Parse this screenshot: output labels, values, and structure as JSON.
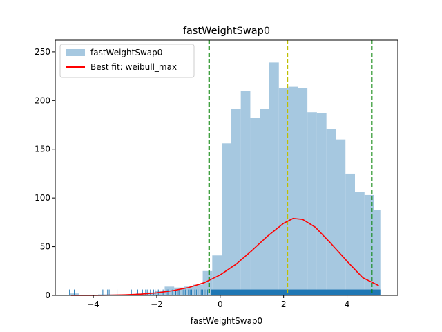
{
  "chart_data": {
    "type": "bar",
    "title": "fastWeightSwap0",
    "xlabel": "fastWeightSwap0",
    "ylabel": "",
    "xlim": [
      -5.2,
      5.6
    ],
    "ylim": [
      0,
      262
    ],
    "grid": false,
    "legend_position": "top-left",
    "xticks": [
      -4,
      -2,
      0,
      2,
      4
    ],
    "xtick_labels": [
      "−4",
      "−2",
      "0",
      "2",
      "4"
    ],
    "yticks": [
      0,
      50,
      100,
      150,
      200,
      250
    ],
    "ytick_labels": [
      "0",
      "50",
      "100",
      "150",
      "200",
      "250"
    ],
    "histogram": {
      "name": "fastWeightSwap0",
      "color": "#a6c8e0",
      "bins": [
        {
          "x0": -4.75,
          "x1": -4.45,
          "value": 2
        },
        {
          "x0": -4.45,
          "x1": -4.15,
          "value": 0
        },
        {
          "x0": -4.15,
          "x1": -3.85,
          "value": 0
        },
        {
          "x0": -3.85,
          "x1": -3.55,
          "value": 1
        },
        {
          "x0": -3.55,
          "x1": -3.25,
          "value": 1
        },
        {
          "x0": -3.25,
          "x1": -2.95,
          "value": 1
        },
        {
          "x0": -2.95,
          "x1": -2.65,
          "value": 1
        },
        {
          "x0": -2.65,
          "x1": -2.35,
          "value": 2
        },
        {
          "x0": -2.35,
          "x1": -2.05,
          "value": 3
        },
        {
          "x0": -2.05,
          "x1": -1.75,
          "value": 5
        },
        {
          "x0": -1.75,
          "x1": -1.45,
          "value": 9
        },
        {
          "x0": -1.45,
          "x1": -1.15,
          "value": 8
        },
        {
          "x0": -1.15,
          "x1": -0.85,
          "value": 9
        },
        {
          "x0": -0.85,
          "x1": -0.55,
          "value": 11
        },
        {
          "x0": -0.55,
          "x1": -0.25,
          "value": 25
        },
        {
          "x0": -0.25,
          "x1": 0.05,
          "value": 41
        },
        {
          "x0": 0.05,
          "x1": 0.35,
          "value": 156
        },
        {
          "x0": 0.35,
          "x1": 0.65,
          "value": 191
        },
        {
          "x0": 0.65,
          "x1": 0.95,
          "value": 210
        },
        {
          "x0": 0.95,
          "x1": 1.25,
          "value": 182
        },
        {
          "x0": 1.25,
          "x1": 1.55,
          "value": 191
        },
        {
          "x0": 1.55,
          "x1": 1.85,
          "value": 239
        },
        {
          "x0": 1.85,
          "x1": 2.15,
          "value": 213
        },
        {
          "x0": 2.15,
          "x1": 2.45,
          "value": 214
        },
        {
          "x0": 2.45,
          "x1": 2.75,
          "value": 213
        },
        {
          "x0": 2.75,
          "x1": 3.05,
          "value": 188
        },
        {
          "x0": 3.05,
          "x1": 3.35,
          "value": 187
        },
        {
          "x0": 3.35,
          "x1": 3.65,
          "value": 171
        },
        {
          "x0": 3.65,
          "x1": 3.95,
          "value": 160
        },
        {
          "x0": 3.95,
          "x1": 4.25,
          "value": 125
        },
        {
          "x0": 4.25,
          "x1": 4.55,
          "value": 106
        },
        {
          "x0": 4.55,
          "x1": 4.85,
          "value": 103
        },
        {
          "x0": 4.85,
          "x1": 5.05,
          "value": 88
        }
      ]
    },
    "best_fit": {
      "name": "Best fit: weibull_max",
      "color": "#ff0000",
      "x": [
        -4.7,
        -4.0,
        -3.5,
        -3.0,
        -2.5,
        -2.0,
        -1.5,
        -1.0,
        -0.5,
        0.0,
        0.5,
        1.0,
        1.5,
        2.0,
        2.3,
        2.6,
        3.0,
        3.5,
        4.0,
        4.5,
        5.0
      ],
      "y": [
        0,
        0,
        0.2,
        0.6,
        1.3,
        2.6,
        4.8,
        8.0,
        13,
        21,
        32,
        46,
        61,
        74,
        79,
        78,
        70,
        53,
        35,
        18,
        10
      ]
    },
    "vlines": [
      {
        "x": -0.35,
        "color": "#008000",
        "style": "dashed"
      },
      {
        "x": 2.12,
        "color": "#bfbf00",
        "style": "dashed"
      },
      {
        "x": 4.78,
        "color": "#008000",
        "style": "dashed"
      }
    ],
    "rug": {
      "color": "#1f77b4",
      "height_value": 6,
      "dense_range": [
        -0.3,
        5.05
      ],
      "sparse_x": [
        -4.75,
        -4.6,
        -3.7,
        -3.55,
        -3.5,
        -3.25,
        -2.8,
        -2.6,
        -2.45,
        -2.35,
        -2.3,
        -2.2,
        -2.1,
        -2.05,
        -1.95,
        -1.9,
        -1.8,
        -1.7,
        -1.65,
        -1.55,
        -1.5,
        -1.4,
        -1.35,
        -1.3,
        -1.2,
        -1.15,
        -1.1,
        -1.0,
        -0.95,
        -0.9,
        -0.8,
        -0.75,
        -0.7,
        -0.6,
        -0.55,
        -0.5,
        -0.45,
        -0.4
      ]
    },
    "legend": [
      {
        "label": "fastWeightSwap0",
        "kind": "patch",
        "color": "#a6c8e0"
      },
      {
        "label": "Best fit: weibull_max",
        "kind": "line",
        "color": "#ff0000"
      }
    ]
  }
}
